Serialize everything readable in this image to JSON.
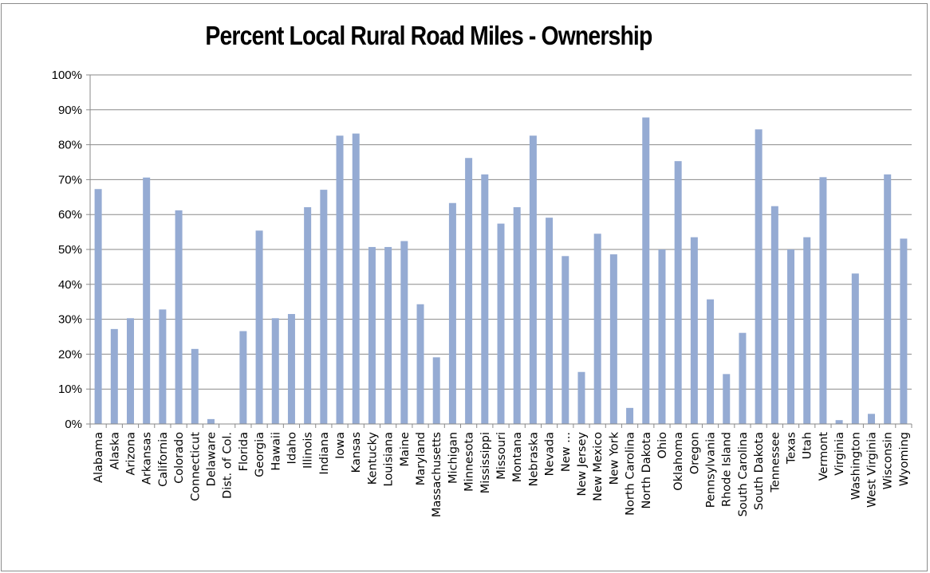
{
  "chart_data": {
    "type": "bar",
    "title": "Percent Local Rural Road Miles - Ownership",
    "xlabel": "",
    "ylabel": "",
    "ylim": [
      0,
      100
    ],
    "y_ticks": [
      "0%",
      "10%",
      "20%",
      "30%",
      "40%",
      "50%",
      "60%",
      "70%",
      "80%",
      "90%",
      "100%"
    ],
    "grid": true,
    "legend": "none",
    "bar_color": "#95abd3",
    "categories": [
      "Alabama",
      "Alaska",
      "Arizona",
      "Arkansas",
      "California",
      "Colorado",
      "Connecticut",
      "Delaware",
      "Dist. of Col.",
      "Florida",
      "Georgia",
      "Hawaii",
      "Idaho",
      "Illinois",
      "Indiana",
      "Iowa",
      "Kansas",
      "Kentucky",
      "Louisiana",
      "Maine",
      "Maryland",
      "Massachusetts",
      "Michigan",
      "Minnesota",
      "Mississippi",
      "Missouri",
      "Montana",
      "Nebraska",
      "Nevada",
      "New ...",
      "New Jersey",
      "New Mexico",
      "New York",
      "North Carolina",
      "North Dakota",
      "Ohio",
      "Oklahoma",
      "Oregon",
      "Pennsylvania",
      "Rhode Island",
      "South Carolina",
      "South Dakota",
      "Tennessee",
      "Texas",
      "Utah",
      "Vermont",
      "Virginia",
      "Washington",
      "West Virginia",
      "Wisconsin",
      "Wyoming"
    ],
    "values": [
      67.3,
      27.2,
      30.3,
      70.6,
      32.8,
      61.2,
      21.5,
      1.4,
      0,
      26.6,
      55.4,
      30.3,
      31.5,
      62.1,
      67.1,
      82.6,
      83.2,
      50.7,
      50.7,
      52.4,
      34.3,
      19.1,
      63.3,
      76.2,
      71.5,
      57.4,
      62.1,
      82.6,
      59.1,
      48.1,
      14.9,
      54.5,
      48.6,
      4.6,
      87.8,
      50.0,
      75.3,
      53.5,
      35.7,
      14.3,
      26.1,
      84.4,
      62.4,
      50.0,
      53.5,
      70.7,
      1.1,
      43.1,
      2.9,
      71.5,
      53.1
    ]
  }
}
